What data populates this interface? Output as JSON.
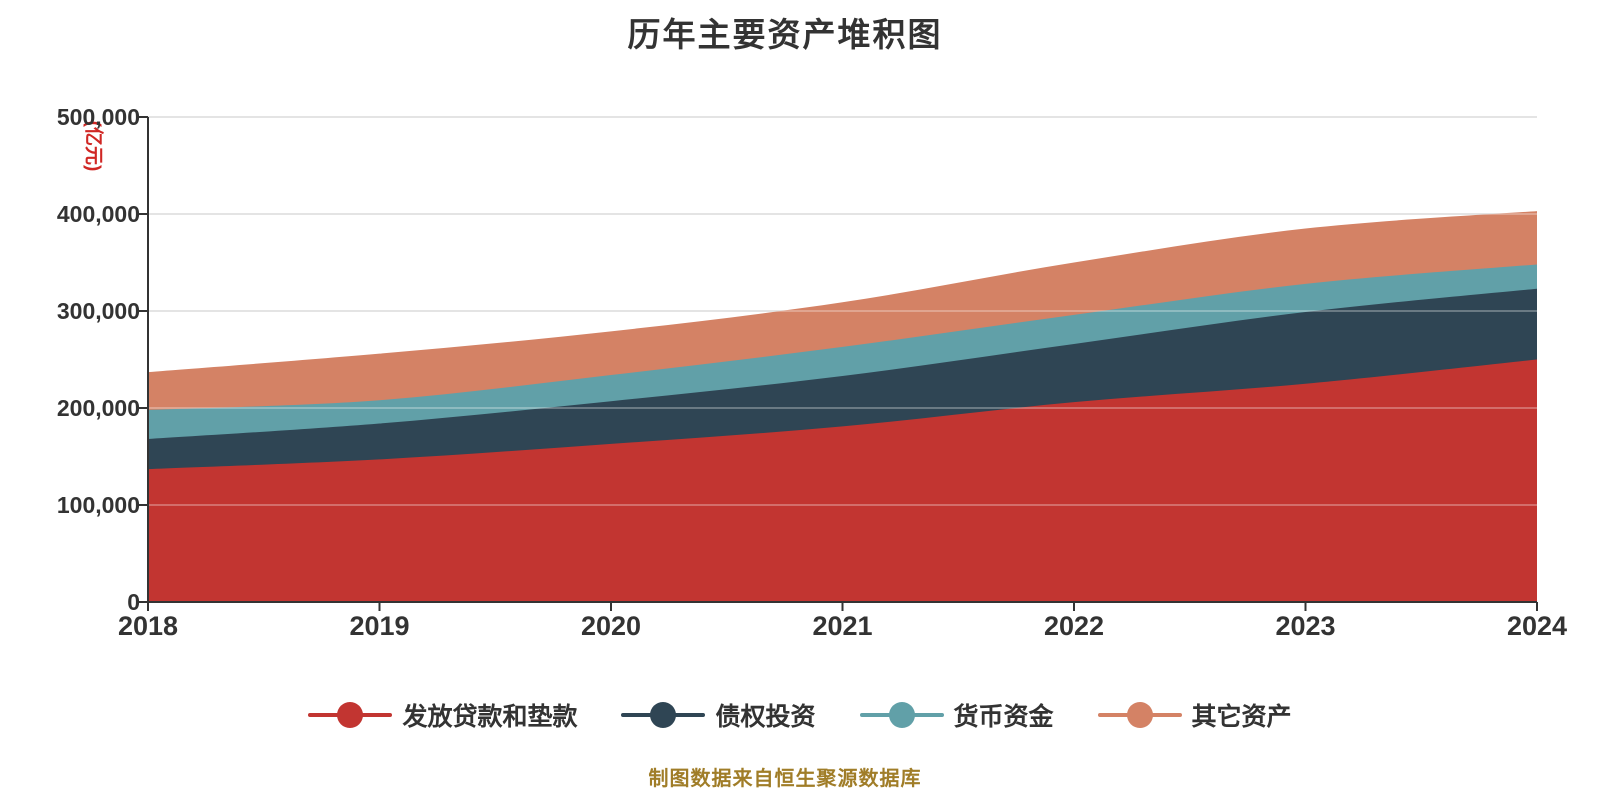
{
  "page": {
    "background": "#ffffff"
  },
  "chart_data": {
    "type": "area",
    "stacked": true,
    "smooth": true,
    "title": "历年主要资产堆积图",
    "unit_label": "(亿元)",
    "source_note": "制图数据来自恒生聚源数据库",
    "categories": [
      "2018",
      "2019",
      "2020",
      "2021",
      "2022",
      "2023",
      "2024"
    ],
    "series": [
      {
        "name": "发放贷款和垫款",
        "color": "#c23531",
        "values": [
          137000,
          147000,
          163000,
          181000,
          206000,
          225000,
          250000
        ]
      },
      {
        "name": "债权投资",
        "color": "#2f4554",
        "values": [
          31000,
          37000,
          44000,
          52000,
          60000,
          74000,
          73000
        ]
      },
      {
        "name": "货币资金",
        "color": "#61a0a8",
        "values": [
          30000,
          24000,
          27000,
          30000,
          30000,
          29000,
          25000
        ]
      },
      {
        "name": "其它资产",
        "color": "#d48265",
        "values": [
          39000,
          48000,
          45000,
          46000,
          54000,
          57000,
          55000
        ]
      }
    ],
    "stack_totals": [
      237000,
      256000,
      279000,
      309000,
      350000,
      385000,
      403000
    ],
    "ylim": [
      0,
      500000
    ],
    "y_ticks": [
      {
        "value": 0,
        "label": "0"
      },
      {
        "value": 100000,
        "label": "100,000"
      },
      {
        "value": 200000,
        "label": "200,000"
      },
      {
        "value": 300000,
        "label": "300,000"
      },
      {
        "value": 400000,
        "label": "400,000"
      },
      {
        "value": 500000,
        "label": "500,000"
      }
    ],
    "grid": true,
    "legend_position": "bottom",
    "styles": {
      "title_color": "#333333",
      "axis_color": "#333333",
      "tick_label_color": "#333333",
      "grid_color": "#cccccc",
      "grid_overlay_color": "rgba(255,255,255,0.38)",
      "unit_color": "#d02724",
      "source_color": "#a07d28",
      "background": "#ffffff"
    }
  }
}
